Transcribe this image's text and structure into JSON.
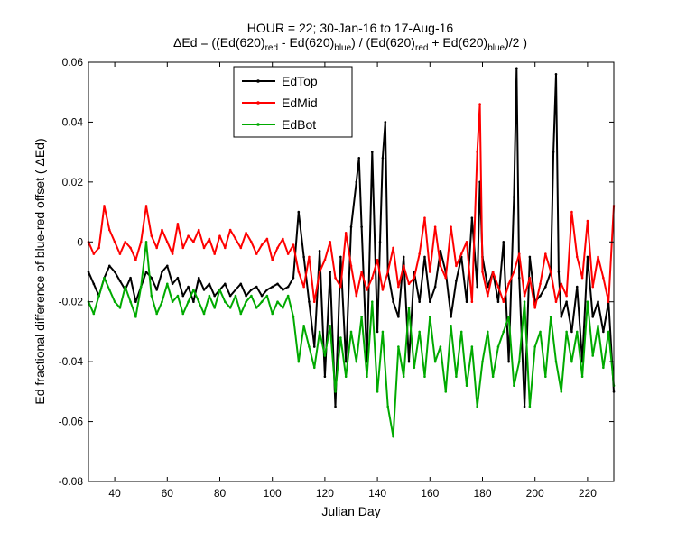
{
  "chart_data": {
    "type": "line",
    "title_line1": "HOUR = 22; 30-Jan-16 to 17-Aug-16",
    "title_line2": {
      "prefix": "ΔEd = ((Ed(620)",
      "sub1": "red",
      "mid1": " - Ed(620)",
      "sub2": "blue",
      "mid2": ") / (Ed(620)",
      "sub3": "red",
      "mid3": " + Ed(620)",
      "sub4": "blue",
      "suffix": ")/2  )"
    },
    "xlabel": "Julian Day",
    "ylabel": "Ed fractional difference of blue-red offset ( ΔEd)",
    "xlim": [
      30,
      230
    ],
    "ylim": [
      -0.08,
      0.06
    ],
    "xticks": [
      40,
      60,
      80,
      100,
      120,
      140,
      160,
      180,
      200,
      220
    ],
    "xtick_labels": [
      "40",
      "60",
      "80",
      "100",
      "120",
      "140",
      "160",
      "180",
      "200",
      "220"
    ],
    "yticks": [
      -0.08,
      -0.06,
      -0.04,
      -0.02,
      0,
      0.02,
      0.04,
      0.06
    ],
    "ytick_labels": [
      "-0.08",
      "-0.06",
      "-0.04",
      "-0.02",
      "0",
      "0.02",
      "0.04",
      "0.06"
    ],
    "grid": false,
    "legend_position": "top-left",
    "colors": {
      "EdTop": "#000000",
      "EdMid": "#ff0000",
      "EdBot": "#00aa00"
    },
    "series": [
      {
        "name": "EdTop",
        "x": [
          30,
          32,
          34,
          36,
          38,
          40,
          42,
          44,
          46,
          48,
          50,
          52,
          54,
          56,
          58,
          60,
          62,
          64,
          66,
          68,
          70,
          72,
          74,
          76,
          78,
          80,
          82,
          84,
          86,
          88,
          90,
          92,
          94,
          96,
          98,
          100,
          102,
          104,
          106,
          108,
          110,
          112,
          114,
          116,
          118,
          120,
          122,
          124,
          126,
          128,
          130,
          132,
          133,
          134,
          136,
          138,
          140,
          141,
          142,
          143,
          144,
          146,
          148,
          150,
          152,
          154,
          156,
          158,
          160,
          162,
          164,
          166,
          168,
          170,
          172,
          174,
          176,
          178,
          179,
          180,
          182,
          184,
          186,
          188,
          190,
          192,
          193,
          194,
          196,
          198,
          200,
          202,
          204,
          206,
          207,
          208,
          209,
          210,
          212,
          214,
          216,
          218,
          220,
          222,
          224,
          226,
          228,
          230
        ],
        "y": [
          -0.01,
          -0.014,
          -0.018,
          -0.012,
          -0.008,
          -0.01,
          -0.013,
          -0.016,
          -0.012,
          -0.02,
          -0.015,
          -0.01,
          -0.012,
          -0.016,
          -0.01,
          -0.008,
          -0.014,
          -0.012,
          -0.018,
          -0.015,
          -0.02,
          -0.012,
          -0.016,
          -0.014,
          -0.018,
          -0.016,
          -0.014,
          -0.018,
          -0.016,
          -0.014,
          -0.018,
          -0.016,
          -0.015,
          -0.018,
          -0.016,
          -0.015,
          -0.014,
          -0.016,
          -0.015,
          -0.012,
          0.01,
          -0.005,
          -0.02,
          -0.035,
          -0.003,
          -0.045,
          -0.01,
          -0.055,
          -0.005,
          -0.04,
          0.005,
          0.02,
          0.028,
          0.005,
          -0.04,
          0.03,
          -0.03,
          0.0,
          0.028,
          0.04,
          -0.01,
          -0.02,
          -0.025,
          -0.005,
          -0.04,
          -0.01,
          -0.02,
          -0.005,
          -0.02,
          -0.015,
          -0.003,
          -0.01,
          -0.025,
          -0.013,
          -0.005,
          -0.02,
          0.008,
          -0.015,
          0.02,
          -0.005,
          -0.015,
          -0.01,
          -0.02,
          0.0,
          -0.04,
          0.015,
          0.058,
          -0.012,
          -0.055,
          -0.005,
          -0.02,
          -0.018,
          -0.015,
          -0.01,
          0.03,
          0.056,
          -0.01,
          -0.025,
          -0.02,
          -0.03,
          -0.015,
          -0.04,
          -0.005,
          -0.025,
          -0.02,
          -0.03,
          -0.02,
          -0.05
        ]
      },
      {
        "name": "EdMid",
        "x": [
          30,
          32,
          34,
          36,
          38,
          40,
          42,
          44,
          46,
          48,
          50,
          52,
          54,
          56,
          58,
          60,
          62,
          64,
          66,
          68,
          70,
          72,
          74,
          76,
          78,
          80,
          82,
          84,
          86,
          88,
          90,
          92,
          94,
          96,
          98,
          100,
          102,
          104,
          106,
          108,
          110,
          112,
          114,
          116,
          118,
          120,
          122,
          124,
          126,
          128,
          130,
          132,
          134,
          136,
          138,
          140,
          142,
          144,
          146,
          148,
          150,
          152,
          154,
          156,
          158,
          160,
          162,
          164,
          166,
          168,
          170,
          172,
          174,
          176,
          178,
          179,
          180,
          182,
          184,
          186,
          188,
          190,
          192,
          194,
          196,
          198,
          200,
          202,
          204,
          206,
          208,
          210,
          212,
          214,
          216,
          218,
          220,
          222,
          224,
          226,
          228,
          230
        ],
        "y": [
          0.0,
          -0.004,
          -0.002,
          0.012,
          0.004,
          0.0,
          -0.004,
          0.0,
          -0.002,
          -0.006,
          0.0,
          0.012,
          0.002,
          -0.002,
          0.004,
          0.0,
          -0.004,
          0.006,
          -0.002,
          0.002,
          0.0,
          0.004,
          -0.002,
          0.001,
          -0.004,
          0.002,
          -0.002,
          0.004,
          0.001,
          -0.002,
          0.003,
          0.0,
          -0.004,
          -0.001,
          0.001,
          -0.006,
          -0.002,
          0.001,
          -0.004,
          -0.001,
          -0.01,
          -0.015,
          -0.005,
          -0.02,
          -0.01,
          -0.006,
          0.0,
          -0.012,
          -0.015,
          0.003,
          -0.008,
          -0.018,
          -0.01,
          -0.016,
          -0.012,
          -0.006,
          -0.016,
          -0.01,
          -0.002,
          -0.015,
          -0.008,
          -0.014,
          -0.012,
          -0.004,
          0.008,
          -0.01,
          0.005,
          -0.008,
          -0.012,
          0.005,
          -0.008,
          -0.004,
          0.0,
          -0.02,
          0.03,
          0.046,
          -0.01,
          -0.018,
          -0.01,
          -0.015,
          -0.02,
          -0.014,
          -0.01,
          -0.004,
          -0.018,
          -0.012,
          -0.022,
          -0.014,
          -0.004,
          -0.01,
          -0.02,
          -0.014,
          -0.018,
          0.01,
          -0.005,
          -0.012,
          0.007,
          -0.015,
          -0.005,
          -0.012,
          -0.02,
          0.012
        ]
      },
      {
        "name": "EdBot",
        "x": [
          30,
          32,
          34,
          36,
          38,
          40,
          42,
          44,
          46,
          48,
          50,
          52,
          54,
          56,
          58,
          60,
          62,
          64,
          66,
          68,
          70,
          72,
          74,
          76,
          78,
          80,
          82,
          84,
          86,
          88,
          90,
          92,
          94,
          96,
          98,
          100,
          102,
          104,
          106,
          108,
          110,
          112,
          114,
          116,
          118,
          120,
          122,
          124,
          126,
          128,
          130,
          132,
          134,
          136,
          138,
          140,
          142,
          144,
          146,
          148,
          150,
          152,
          154,
          156,
          158,
          160,
          162,
          164,
          166,
          168,
          170,
          172,
          174,
          176,
          178,
          180,
          182,
          184,
          186,
          188,
          190,
          192,
          194,
          196,
          198,
          200,
          202,
          204,
          206,
          208,
          210,
          212,
          214,
          216,
          218,
          220,
          222,
          224,
          226,
          228,
          230
        ],
        "y": [
          -0.02,
          -0.024,
          -0.018,
          -0.012,
          -0.016,
          -0.02,
          -0.022,
          -0.015,
          -0.02,
          -0.025,
          -0.015,
          0.0,
          -0.018,
          -0.024,
          -0.02,
          -0.014,
          -0.02,
          -0.018,
          -0.024,
          -0.02,
          -0.016,
          -0.02,
          -0.024,
          -0.018,
          -0.022,
          -0.016,
          -0.02,
          -0.022,
          -0.018,
          -0.024,
          -0.02,
          -0.018,
          -0.022,
          -0.02,
          -0.018,
          -0.024,
          -0.02,
          -0.022,
          -0.018,
          -0.025,
          -0.04,
          -0.028,
          -0.035,
          -0.042,
          -0.03,
          -0.038,
          -0.028,
          -0.05,
          -0.032,
          -0.045,
          -0.03,
          -0.04,
          -0.025,
          -0.045,
          -0.02,
          -0.05,
          -0.03,
          -0.055,
          -0.065,
          -0.035,
          -0.045,
          -0.022,
          -0.042,
          -0.03,
          -0.045,
          -0.025,
          -0.04,
          -0.035,
          -0.05,
          -0.028,
          -0.045,
          -0.03,
          -0.048,
          -0.035,
          -0.055,
          -0.04,
          -0.03,
          -0.045,
          -0.035,
          -0.03,
          -0.025,
          -0.048,
          -0.04,
          -0.02,
          -0.055,
          -0.035,
          -0.03,
          -0.045,
          -0.025,
          -0.04,
          -0.05,
          -0.03,
          -0.04,
          -0.03,
          -0.045,
          -0.02,
          -0.038,
          -0.028,
          -0.042,
          -0.03,
          -0.048
        ]
      }
    ]
  }
}
